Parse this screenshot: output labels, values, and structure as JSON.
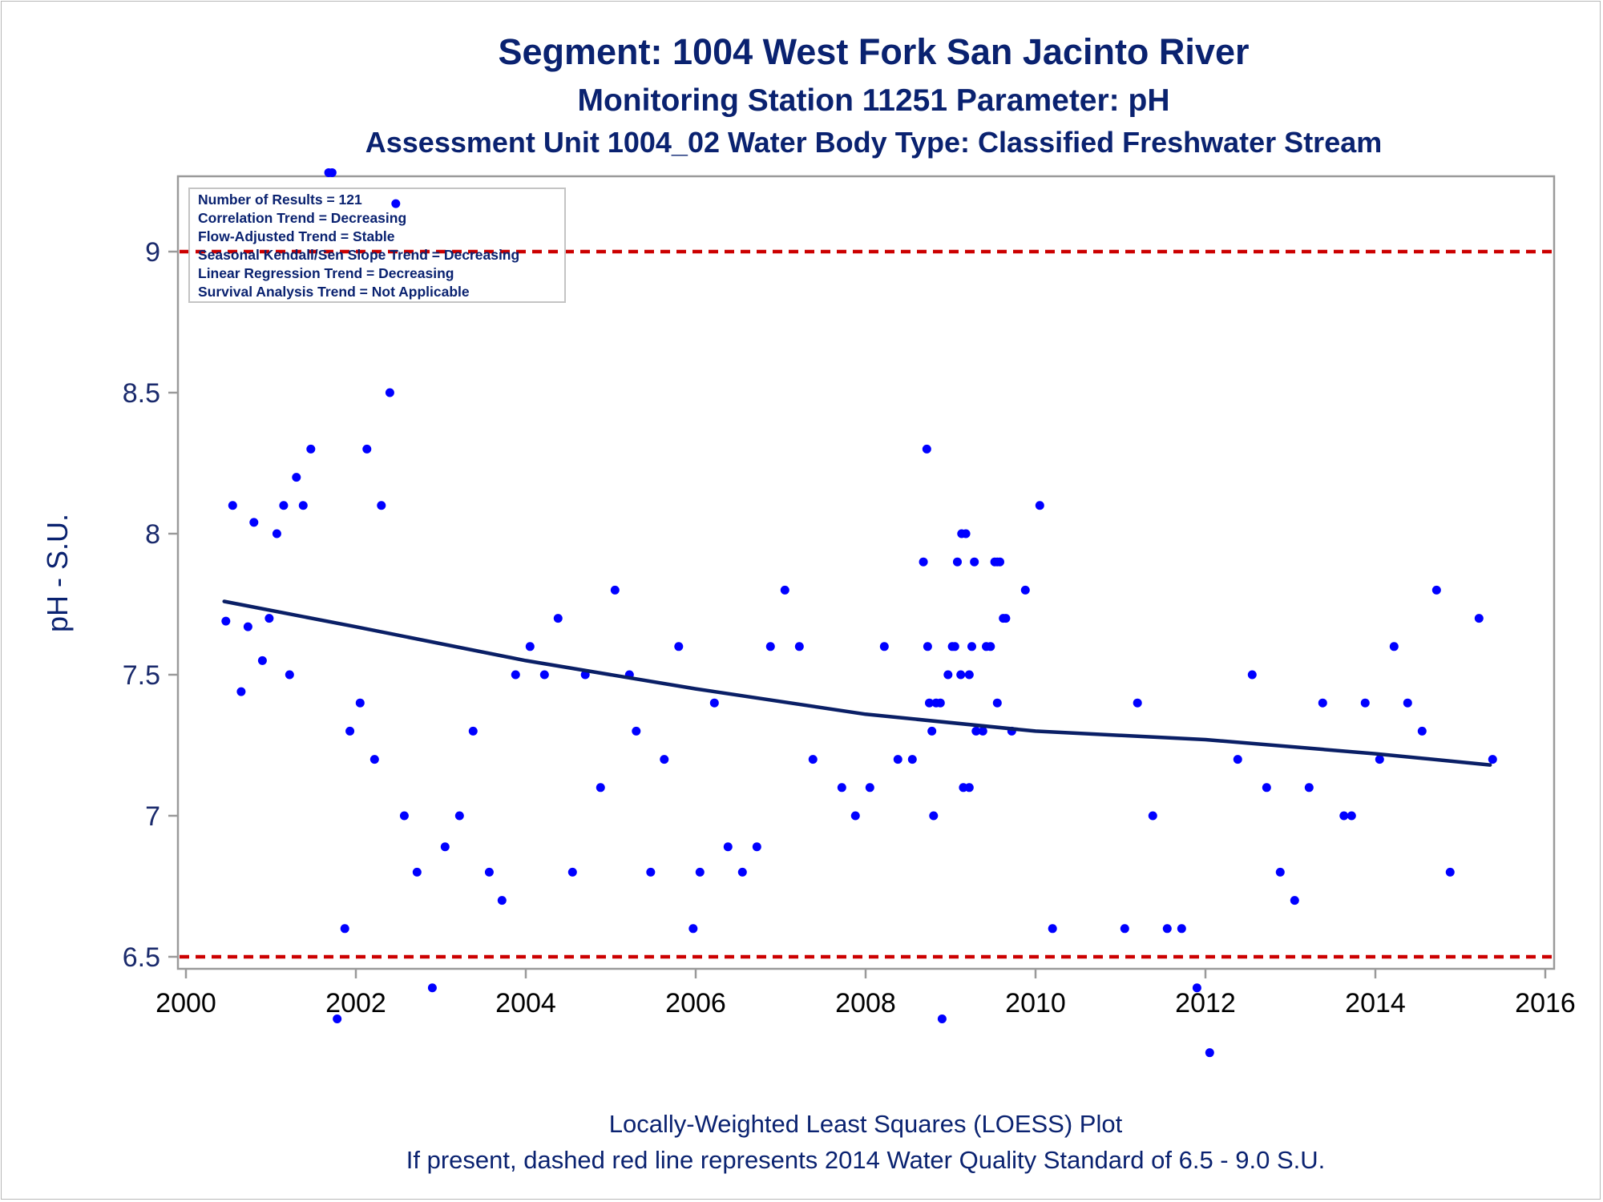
{
  "titles": {
    "line1": "Segment: 1004  West Fork San Jacinto River",
    "line2": "Monitoring Station 11251 Parameter: pH",
    "line3": "Assessment Unit 1004_02   Water Body Type: Classified Freshwater Stream"
  },
  "footnotes": {
    "line1": "Locally-Weighted Least Squares (LOESS) Plot",
    "line2": "If present, dashed red line represents 2014 Water Quality Standard of 6.5 - 9.0 S.U."
  },
  "legend": [
    "Number of Results = 121",
    "Correlation Trend = Decreasing",
    "Flow-Adjusted Trend = Stable",
    "Seasonal Kendall/Sen Slope Trend = Decreasing",
    "Linear Regression Trend = Decreasing",
    "Survival Analysis Trend = Not Applicable"
  ],
  "colors": {
    "text": "#0a2270",
    "points": "#0000ff",
    "trend": "#0a1f66",
    "standard": "#cc0000",
    "axis": "#9a9a9a"
  },
  "chart_data": {
    "type": "scatter",
    "xlabel": "",
    "ylabel": "pH - S.U.",
    "xlim": [
      2000,
      2016
    ],
    "ylim": [
      6.22,
      9.29
    ],
    "x_ticks": [
      2000,
      2002,
      2004,
      2006,
      2008,
      2010,
      2012,
      2014,
      2016
    ],
    "y_ticks": [
      6.5,
      7,
      7.5,
      8,
      8.5,
      9
    ],
    "y_tick_labels": [
      "6.5",
      "7",
      "7.5",
      "8",
      "8.5",
      "9"
    ],
    "grid": false,
    "legend_position": "top-left",
    "standards": [
      6.5,
      9.0
    ],
    "trend_line": {
      "type": "loess",
      "x": [
        2000.45,
        2002,
        2004,
        2006,
        2008,
        2010,
        2012,
        2014,
        2015.35
      ],
      "y": [
        7.76,
        7.67,
        7.55,
        7.45,
        7.36,
        7.3,
        7.27,
        7.22,
        7.18
      ]
    },
    "points": {
      "x": [
        2000.47,
        2000.55,
        2000.65,
        2000.73,
        2000.8,
        2000.9,
        2000.98,
        2001.07,
        2001.15,
        2001.22,
        2001.3,
        2001.38,
        2001.47,
        2001.68,
        2001.72,
        2001.78,
        2001.87,
        2001.93,
        2002.05,
        2002.13,
        2002.22,
        2002.3,
        2002.4,
        2002.47,
        2002.57,
        2002.72,
        2002.9,
        2003.05,
        2003.22,
        2003.38,
        2003.57,
        2003.72,
        2003.88,
        2004.05,
        2004.22,
        2004.38,
        2004.55,
        2004.7,
        2004.88,
        2005.05,
        2005.22,
        2005.3,
        2005.47,
        2005.63,
        2005.8,
        2005.97,
        2006.05,
        2006.22,
        2006.38,
        2006.55,
        2006.72,
        2006.88,
        2007.05,
        2007.22,
        2007.38,
        2007.72,
        2007.88,
        2008.05,
        2008.22,
        2008.38,
        2008.55,
        2008.68,
        2008.72,
        2008.73,
        2008.75,
        2008.78,
        2008.8,
        2008.83,
        2008.88,
        2008.9,
        2008.97,
        2009.02,
        2009.05,
        2009.08,
        2009.12,
        2009.13,
        2009.15,
        2009.18,
        2009.22,
        2009.22,
        2009.25,
        2009.28,
        2009.3,
        2009.38,
        2009.42,
        2009.47,
        2009.52,
        2009.55,
        2009.55,
        2009.58,
        2009.62,
        2009.65,
        2009.72,
        2009.88,
        2010.05,
        2010.2,
        2011.05,
        2011.2,
        2011.38,
        2011.55,
        2011.72,
        2011.9,
        2012.05,
        2012.38,
        2012.55,
        2012.72,
        2012.88,
        2013.05,
        2013.22,
        2013.38,
        2013.63,
        2013.72,
        2013.88,
        2014.05,
        2014.22,
        2014.38,
        2014.55,
        2014.72,
        2014.88,
        2015.22,
        2015.38
      ],
      "y": [
        7.69,
        8.1,
        7.44,
        7.67,
        8.04,
        7.55,
        7.7,
        8.0,
        8.1,
        7.5,
        8.2,
        8.1,
        8.3,
        9.28,
        9.28,
        6.28,
        6.6,
        7.3,
        7.4,
        8.3,
        7.2,
        8.1,
        8.5,
        9.17,
        7.0,
        6.8,
        6.39,
        6.89,
        7.0,
        7.3,
        6.8,
        6.7,
        7.5,
        7.6,
        7.5,
        7.7,
        6.8,
        7.5,
        7.1,
        7.8,
        7.5,
        7.3,
        6.8,
        7.2,
        7.6,
        6.6,
        6.8,
        7.4,
        6.89,
        6.8,
        6.89,
        7.6,
        7.8,
        7.6,
        7.2,
        7.1,
        7.0,
        7.1,
        7.6,
        7.2,
        7.2,
        7.9,
        8.3,
        7.6,
        7.4,
        7.3,
        7.0,
        7.4,
        7.4,
        6.28,
        7.5,
        7.6,
        7.6,
        7.9,
        7.5,
        8.0,
        7.1,
        8.0,
        7.5,
        7.1,
        7.6,
        7.9,
        7.3,
        7.3,
        7.6,
        7.6,
        7.9,
        7.9,
        7.4,
        7.9,
        7.7,
        7.7,
        7.3,
        7.8,
        8.1,
        6.6,
        6.6,
        7.4,
        7.0,
        6.6,
        6.6,
        6.39,
        6.16,
        7.2,
        7.5,
        7.1,
        6.8,
        6.7,
        7.1,
        7.4,
        7.0,
        7.0,
        7.4,
        7.2,
        7.6,
        7.4,
        7.3,
        7.8,
        6.8,
        7.7,
        7.2
      ]
    }
  }
}
